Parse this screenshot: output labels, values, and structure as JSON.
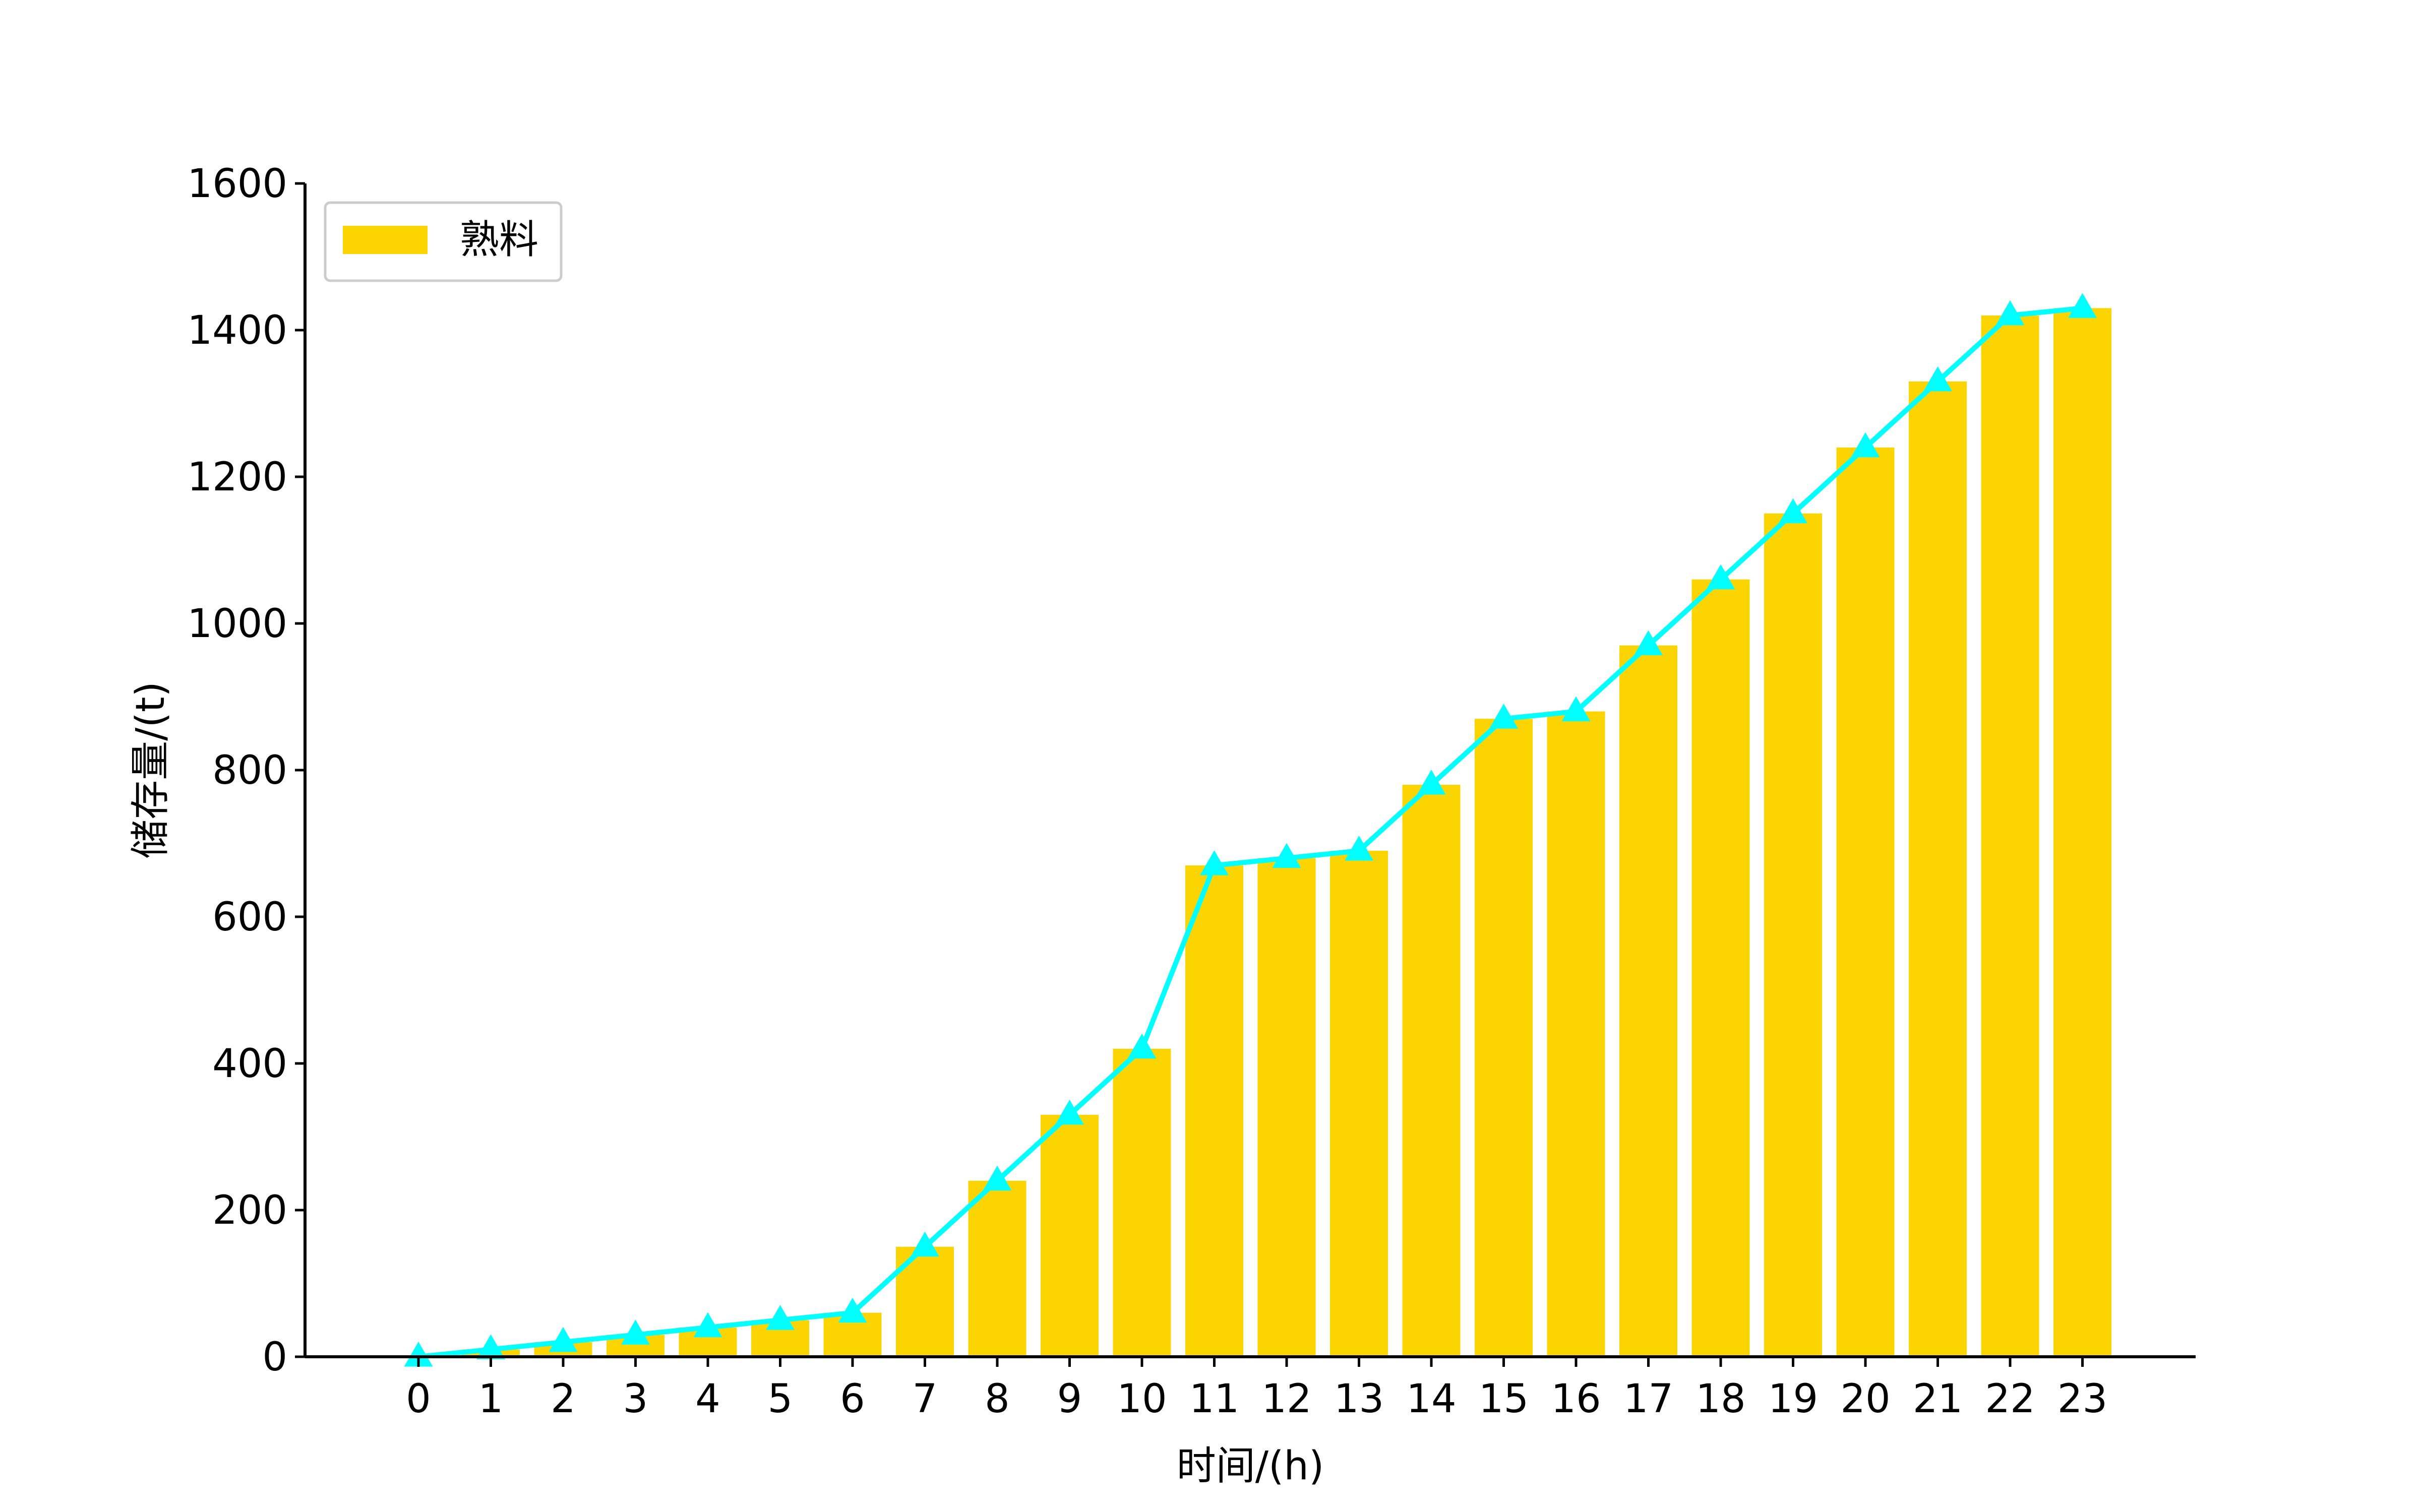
{
  "chart_data": {
    "type": "bar",
    "x": [
      0,
      1,
      2,
      3,
      4,
      5,
      6,
      7,
      8,
      9,
      10,
      11,
      12,
      13,
      14,
      15,
      16,
      17,
      18,
      19,
      20,
      21,
      22,
      23
    ],
    "series": [
      {
        "name": "熟料",
        "type": "bar",
        "color": "#FCD500",
        "values": [
          0,
          10,
          20,
          30,
          40,
          50,
          60,
          150,
          240,
          330,
          420,
          670,
          680,
          690,
          780,
          870,
          880,
          970,
          1060,
          1150,
          1240,
          1330,
          1420,
          1430
        ]
      },
      {
        "type": "line",
        "color": "#00FFFF",
        "marker": "triangle",
        "values": [
          0,
          10,
          20,
          30,
          40,
          50,
          60,
          150,
          240,
          330,
          420,
          670,
          680,
          690,
          780,
          870,
          880,
          970,
          1060,
          1150,
          1240,
          1330,
          1420,
          1430
        ]
      }
    ],
    "xlabel": "时间/(h)",
    "ylabel": "储存量/(t)",
    "ylim": [
      0,
      1600
    ],
    "yticks": [
      0,
      200,
      400,
      600,
      800,
      1000,
      1200,
      1400,
      1600
    ],
    "grid": false,
    "legend_position": "top-left"
  }
}
